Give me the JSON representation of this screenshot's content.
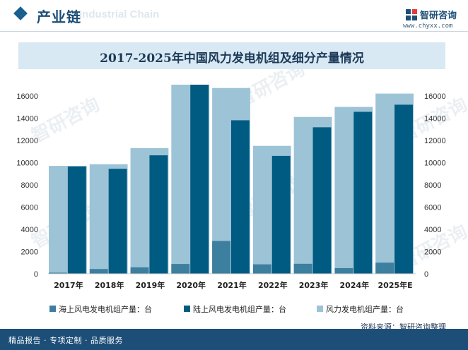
{
  "header": {
    "title": "产业链",
    "ghost_text": "Industrial Chain",
    "brand_name": "智研咨询",
    "brand_url": "www.chyxx.com"
  },
  "watermark_text": "智研咨询",
  "footer": {
    "text": "精品报告 · 专项定制 · 品质服务"
  },
  "source": "资料来源：智研咨询整理",
  "colors": {
    "offshore": "#3d7f9e",
    "onshore": "#005b82",
    "total": "#9dc3d6",
    "title_band": "#d8e9f3",
    "footer": "#1d4e78"
  },
  "chart_data": {
    "type": "bar",
    "title": "2017-2025年中国风力发电机组及细分产量情况",
    "categories": [
      "2017年",
      "2018年",
      "2019年",
      "2020年",
      "2021年",
      "2022年",
      "2023年",
      "2024年",
      "2025年E"
    ],
    "series": [
      {
        "name": "海上风电发电机组产量：台",
        "values": [
          100,
          430,
          580,
          880,
          2950,
          850,
          900,
          510,
          1000
        ]
      },
      {
        "name": "陆上风电发电机组产量：台",
        "values": [
          9650,
          9440,
          10650,
          17000,
          13800,
          10600,
          13170,
          14560,
          15200
        ]
      },
      {
        "name": "风力发电机组产量：台",
        "values": [
          9700,
          9850,
          11300,
          17000,
          16700,
          11500,
          14100,
          15000,
          16200
        ]
      }
    ],
    "left_axis": {
      "ylim": [
        0,
        17000
      ],
      "ticks": [
        0,
        2000,
        4000,
        6000,
        8000,
        10000,
        12000,
        14000,
        16000
      ]
    },
    "right_axis": {
      "ylim": [
        0,
        17000
      ],
      "ticks": [
        0,
        2000,
        4000,
        6000,
        8000,
        10000,
        12000,
        14000,
        16000
      ]
    },
    "grid": false,
    "legend_position": "bottom"
  }
}
